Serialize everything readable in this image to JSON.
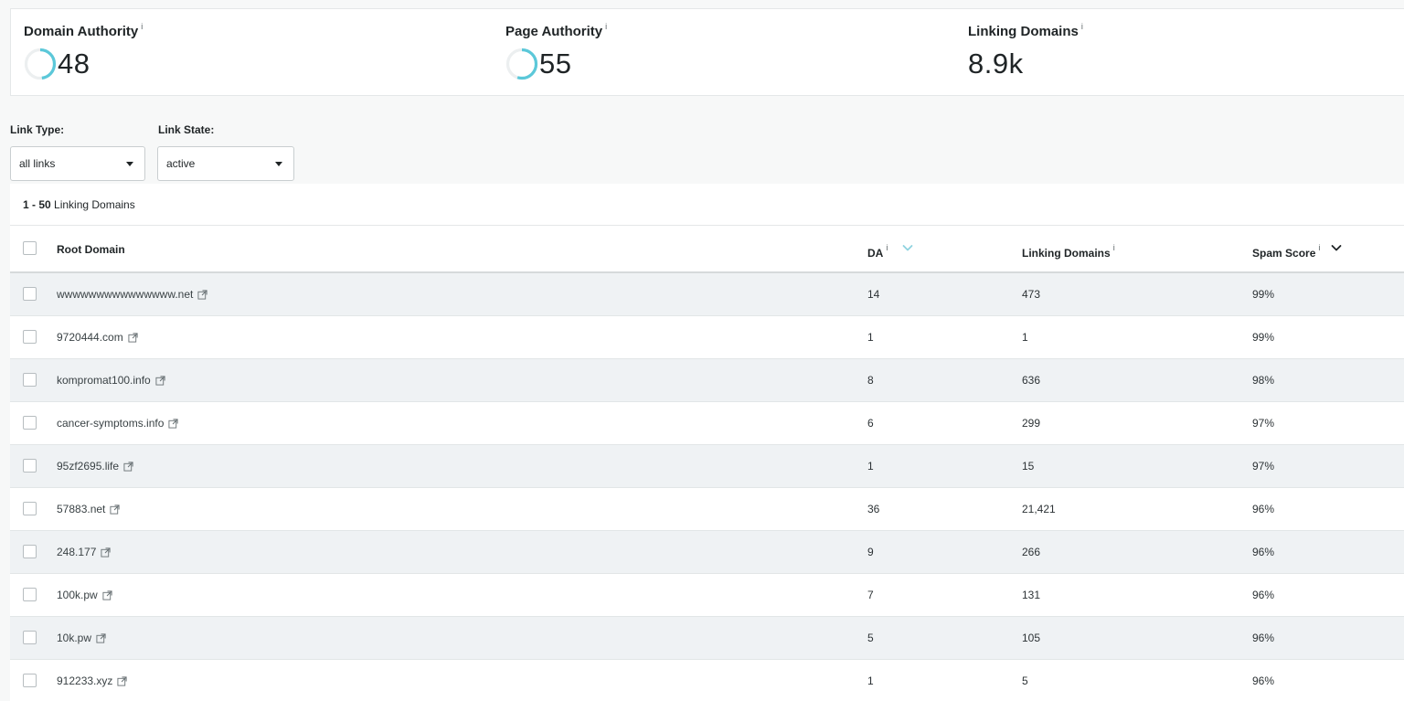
{
  "metrics": [
    {
      "label": "Domain Authority",
      "info": "i",
      "value": "48",
      "ring_fraction": 0.48,
      "ring_color": "#5bc8d9"
    },
    {
      "label": "Page Authority",
      "info": "i",
      "value": "55",
      "ring_fraction": 0.55,
      "ring_color": "#5bc8d9"
    },
    {
      "label": "Linking Domains",
      "info": "i",
      "value": "8.9k"
    }
  ],
  "filters": {
    "link_type": {
      "label": "Link Type:",
      "value": "all links"
    },
    "link_state": {
      "label": "Link State:",
      "value": "active"
    }
  },
  "results": {
    "range": "1 - 50",
    "suffix": " Linking Domains"
  },
  "table": {
    "columns": {
      "root_domain": "Root Domain",
      "da": "DA",
      "linking_domains": "Linking Domains",
      "spam_score": "Spam Score"
    },
    "info": "i",
    "rows": [
      {
        "domain": "wwwwwwwwwwwwwww.net",
        "da": "14",
        "linking_domains": "473",
        "spam_score": "99%"
      },
      {
        "domain": "9720444.com",
        "da": "1",
        "linking_domains": "1",
        "spam_score": "99%"
      },
      {
        "domain": "kompromat100.info",
        "da": "8",
        "linking_domains": "636",
        "spam_score": "98%"
      },
      {
        "domain": "cancer-symptoms.info",
        "da": "6",
        "linking_domains": "299",
        "spam_score": "97%"
      },
      {
        "domain": "95zf2695.life",
        "da": "1",
        "linking_domains": "15",
        "spam_score": "97%"
      },
      {
        "domain": "57883.net",
        "da": "36",
        "linking_domains": "21,421",
        "spam_score": "96%"
      },
      {
        "domain": "248.177",
        "da": "9",
        "linking_domains": "266",
        "spam_score": "96%"
      },
      {
        "domain": "100k.pw",
        "da": "7",
        "linking_domains": "131",
        "spam_score": "96%"
      },
      {
        "domain": "10k.pw",
        "da": "5",
        "linking_domains": "105",
        "spam_score": "96%"
      },
      {
        "domain": "912233.xyz",
        "da": "1",
        "linking_domains": "5",
        "spam_score": "96%"
      }
    ]
  },
  "icons": {
    "external_link": "external-link-icon",
    "sort_da": "chevron-down-icon",
    "sort_spam": "chevron-down-icon",
    "select_caret": "caret-down-icon"
  },
  "colors": {
    "accent": "#5bc8d9",
    "row_alt": "#eff2f4",
    "sort_inactive": "#8fd3df"
  }
}
